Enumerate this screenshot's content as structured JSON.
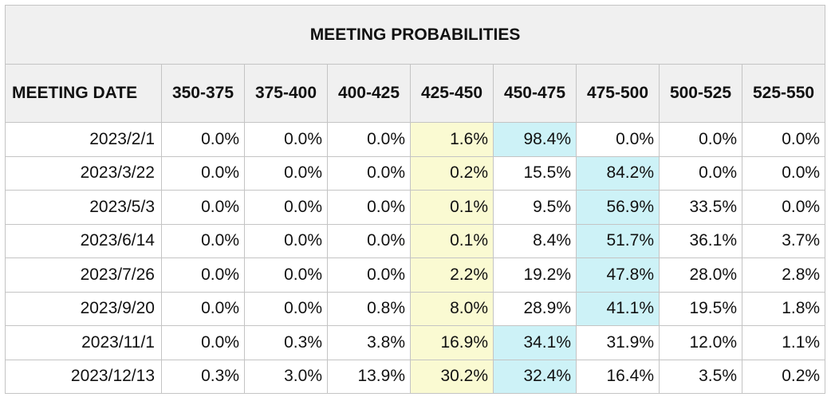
{
  "title": "MEETING PROBABILITIES",
  "header": {
    "date_label": "MEETING DATE",
    "ranges": [
      "350-375",
      "375-400",
      "400-425",
      "425-450",
      "450-475",
      "475-500",
      "500-525",
      "525-550"
    ]
  },
  "colors": {
    "highlight_yellow": "#fafad2",
    "highlight_blue": "#cdf2f7",
    "header_bg": "#f0f0f0"
  },
  "highlighted_column": "425-450",
  "rows": [
    {
      "date": "2023/2/1",
      "values": [
        "0.0%",
        "0.0%",
        "0.0%",
        "1.6%",
        "98.4%",
        "0.0%",
        "0.0%",
        "0.0%"
      ],
      "max_index": 4
    },
    {
      "date": "2023/3/22",
      "values": [
        "0.0%",
        "0.0%",
        "0.0%",
        "0.2%",
        "15.5%",
        "84.2%",
        "0.0%",
        "0.0%"
      ],
      "max_index": 5
    },
    {
      "date": "2023/5/3",
      "values": [
        "0.0%",
        "0.0%",
        "0.0%",
        "0.1%",
        "9.5%",
        "56.9%",
        "33.5%",
        "0.0%"
      ],
      "max_index": 5
    },
    {
      "date": "2023/6/14",
      "values": [
        "0.0%",
        "0.0%",
        "0.0%",
        "0.1%",
        "8.4%",
        "51.7%",
        "36.1%",
        "3.7%"
      ],
      "max_index": 5
    },
    {
      "date": "2023/7/26",
      "values": [
        "0.0%",
        "0.0%",
        "0.0%",
        "2.2%",
        "19.2%",
        "47.8%",
        "28.0%",
        "2.8%"
      ],
      "max_index": 5
    },
    {
      "date": "2023/9/20",
      "values": [
        "0.0%",
        "0.0%",
        "0.8%",
        "8.0%",
        "28.9%",
        "41.1%",
        "19.5%",
        "1.8%"
      ],
      "max_index": 5
    },
    {
      "date": "2023/11/1",
      "values": [
        "0.0%",
        "0.3%",
        "3.8%",
        "16.9%",
        "34.1%",
        "31.9%",
        "12.0%",
        "1.1%"
      ],
      "max_index": 4
    },
    {
      "date": "2023/12/13",
      "values": [
        "0.3%",
        "3.0%",
        "13.9%",
        "30.2%",
        "32.4%",
        "16.4%",
        "3.5%",
        "0.2%"
      ],
      "max_index": 4
    }
  ]
}
